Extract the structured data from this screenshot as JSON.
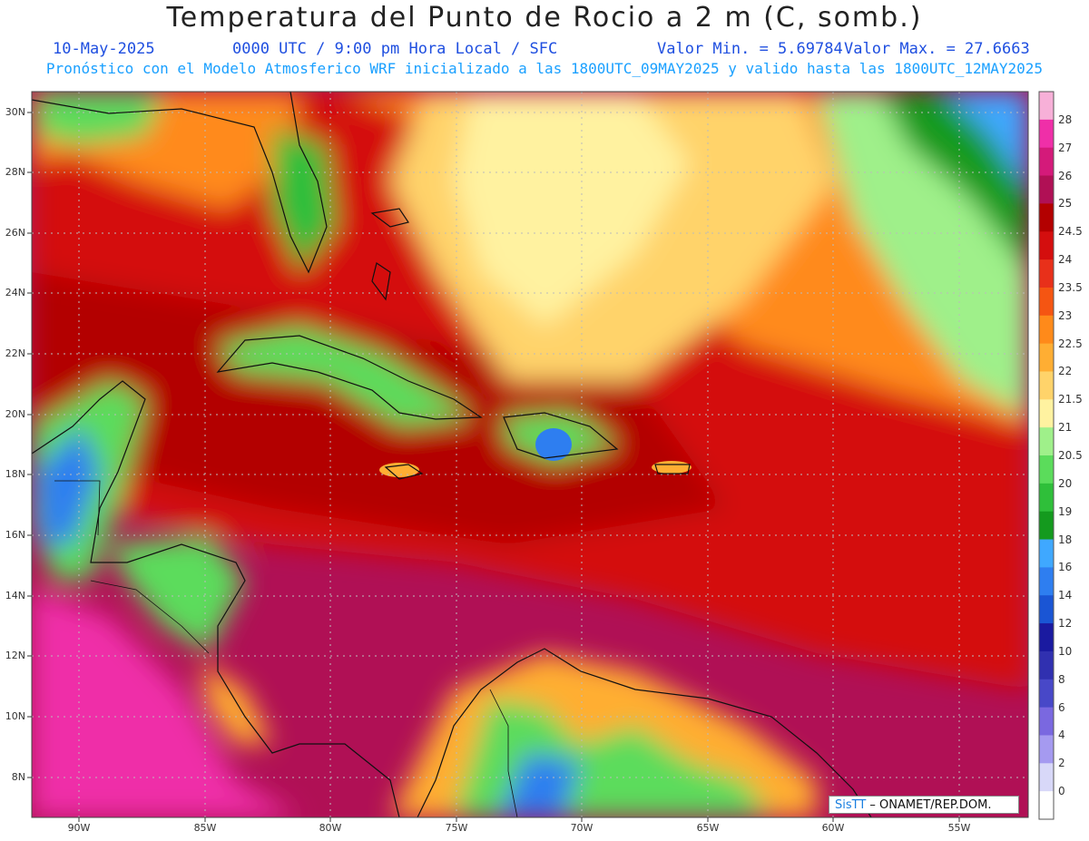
{
  "title": "Temperatura del Punto de Rocio a 2 m (C, somb.)",
  "subtitle": {
    "date": "10-May-2025",
    "time": "0000 UTC / 9:00 pm Hora Local / SFC",
    "min": "Valor Min. = 5.69784",
    "max": "Valor Max. = 27.6663"
  },
  "forecast_note": "Pronóstico con el Modelo Atmosferico WRF inicializado a las 1800UTC_09MAY2025 y valido hasta las  1800UTC_12MAY2025",
  "map": {
    "lat_labels": [
      "30N",
      "28N",
      "26N",
      "24N",
      "22N",
      "20N",
      "18N",
      "16N",
      "14N",
      "12N",
      "10N",
      "8N"
    ],
    "lon_labels": [
      "90W",
      "85W",
      "80W",
      "75W",
      "70W",
      "65W",
      "60W",
      "55W"
    ]
  },
  "colorbar": {
    "labels": [
      "28",
      "27",
      "26",
      "25",
      "24.5",
      "24",
      "23.5",
      "23",
      "22.5",
      "22",
      "21.5",
      "21",
      "20.5",
      "20",
      "19",
      "18",
      "16",
      "14",
      "12",
      "10",
      "8",
      "6",
      "4",
      "2",
      "0"
    ],
    "colors": [
      "#f7b0d8",
      "#ef2fa8",
      "#d41a7a",
      "#b01055",
      "#b30000",
      "#d40e0e",
      "#e8301a",
      "#f55512",
      "#ff8a1a",
      "#ffae33",
      "#ffd36a",
      "#fff2a0",
      "#9ff08a",
      "#5bdc5b",
      "#2fbf3a",
      "#149a1e",
      "#3fa8ff",
      "#2e7ef0",
      "#1a55d4",
      "#1a1aa0",
      "#3030b0",
      "#4848c8",
      "#7a68e0",
      "#a59af0",
      "#d8d8f8",
      "#ffffff"
    ]
  },
  "credit": {
    "brand": "SisTT",
    "text": " – ONAMET/REP.DOM."
  }
}
